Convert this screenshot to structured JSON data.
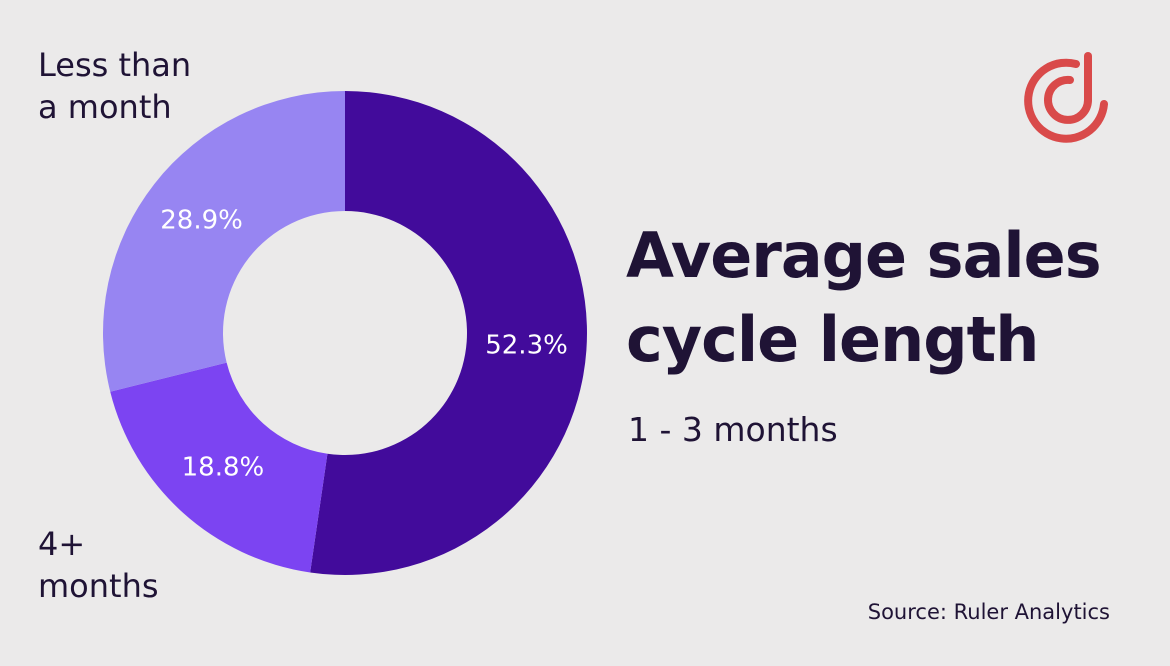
{
  "chart_data": {
    "type": "pie",
    "variant": "donut",
    "title": "Average sales cycle length",
    "subtitle": "1 - 3 months",
    "source": "Source: Ruler Analytics",
    "slices": [
      {
        "name": "1 - 3 months",
        "value": 52.3,
        "label": "52.3%",
        "color": "#420b9b"
      },
      {
        "name": "4+ months",
        "value": 18.8,
        "label": "18.8%",
        "color": "#7c44f2"
      },
      {
        "name": "Less than a month",
        "value": 28.9,
        "label": "28.9%",
        "color": "#9785f2"
      }
    ],
    "outer_labels": {
      "less_than_month": [
        "Less than",
        "a month"
      ],
      "four_plus_months": [
        "4+",
        "months"
      ]
    }
  },
  "colors": {
    "background": "#ebeaea",
    "text": "#1f1335",
    "logo": "#d94a4a"
  },
  "logo_icon": "circle-d-logo-icon"
}
